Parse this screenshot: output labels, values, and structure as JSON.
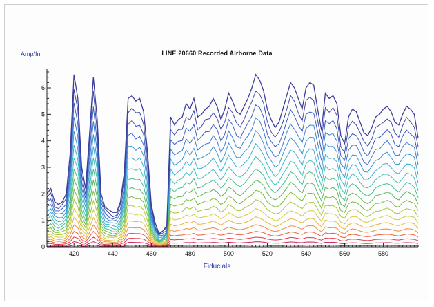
{
  "chart_data": {
    "type": "line",
    "title": "LINE 20660 Recorded Airborne Data",
    "ylabel": "Amp/fn",
    "xlabel": "Fiducials",
    "xlim": [
      406,
      598
    ],
    "ylim": [
      0,
      6.6
    ],
    "x_ticks": [
      420,
      440,
      460,
      480,
      500,
      520,
      540,
      560,
      580
    ],
    "x_tick_labels": [
      "420",
      "440",
      "460",
      "480",
      "500",
      "520",
      "540",
      "560",
      "580"
    ],
    "y_ticks": [
      0,
      1,
      2,
      3,
      4,
      5,
      6
    ],
    "y_tick_labels": [
      "0",
      "1",
      "2",
      "3",
      "4",
      "5",
      "6"
    ],
    "grid": false,
    "legend": "none",
    "series_colors": [
      "#3c3c9a",
      "#3d47a8",
      "#3a5ec0",
      "#3a7ad0",
      "#3a95d6",
      "#3ab0d2",
      "#3cc0b8",
      "#46be8c",
      "#5cb65a",
      "#7cba3e",
      "#a8c63a",
      "#d2cc3c",
      "#e8b43a",
      "#ee8c3a",
      "#ec5c3c",
      "#e03a4a",
      "#cc2a5a",
      "#b81e6a"
    ],
    "envelope": {
      "x": [
        406,
        408,
        410,
        412,
        414,
        416,
        418,
        420,
        422,
        424,
        426,
        428,
        430,
        432,
        434,
        436,
        438,
        440,
        442,
        444,
        446,
        448,
        450,
        452,
        454,
        456,
        458,
        460,
        462,
        464,
        466,
        468,
        470,
        472,
        474,
        476,
        478,
        480,
        482,
        484,
        486,
        488,
        490,
        492,
        494,
        496,
        498,
        500,
        502,
        504,
        506,
        508,
        510,
        512,
        514,
        516,
        518,
        520,
        522,
        524,
        526,
        528,
        530,
        532,
        534,
        536,
        538,
        540,
        542,
        544,
        546,
        548,
        550,
        552,
        554,
        556,
        558,
        560,
        562,
        564,
        566,
        568,
        570,
        572,
        574,
        576,
        578,
        580,
        582,
        584,
        586,
        588,
        590,
        592,
        594,
        596,
        598
      ],
      "y": [
        2.0,
        2.2,
        1.7,
        1.6,
        1.7,
        2.0,
        3.5,
        6.5,
        5.6,
        3.0,
        2.2,
        4.2,
        6.4,
        4.8,
        2.0,
        1.5,
        1.4,
        1.3,
        1.3,
        1.7,
        2.8,
        5.6,
        5.7,
        5.5,
        5.6,
        5.1,
        3.6,
        1.6,
        0.9,
        0.5,
        0.6,
        0.8,
        4.9,
        4.6,
        4.8,
        4.9,
        5.4,
        5.2,
        5.6,
        4.9,
        5.0,
        5.2,
        5.3,
        5.6,
        5.3,
        4.8,
        5.2,
        5.8,
        5.5,
        5.1,
        5.0,
        5.3,
        5.6,
        6.0,
        6.5,
        6.3,
        5.9,
        5.2,
        4.8,
        4.5,
        4.7,
        5.2,
        5.7,
        6.2,
        6.0,
        5.6,
        5.2,
        6.0,
        6.2,
        6.1,
        5.2,
        4.4,
        5.8,
        5.6,
        5.7,
        5.4,
        4.2,
        3.9,
        4.9,
        5.2,
        5.1,
        4.7,
        4.3,
        4.2,
        4.5,
        4.9,
        5.0,
        5.2,
        5.3,
        5.1,
        4.7,
        4.6,
        5.0,
        5.3,
        5.2,
        5.0,
        4.1
      ]
    },
    "channels": 18,
    "channel_scale_note": ""
  }
}
